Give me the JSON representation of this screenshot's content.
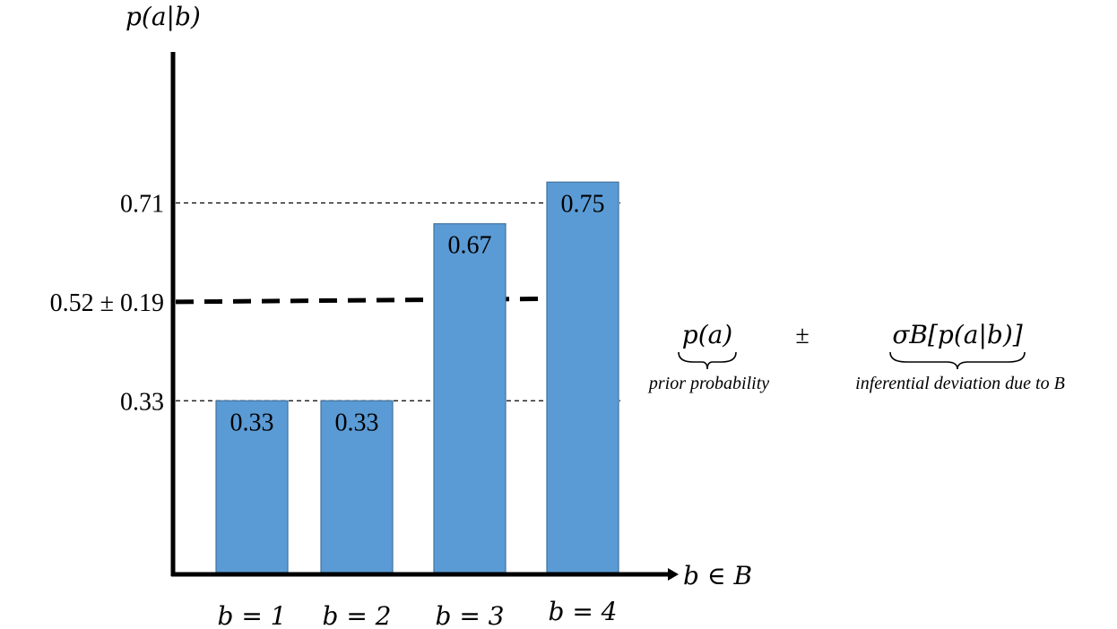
{
  "chart_data": {
    "type": "bar",
    "ylabel": "p(a|b)",
    "xlabel": "b ∈ B",
    "categories": [
      "b = 1",
      "b = 2",
      "b = 3",
      "b = 4"
    ],
    "values": [
      0.33,
      0.33,
      0.67,
      0.75
    ],
    "data_labels": [
      "0.33",
      "0.33",
      "0.67",
      "0.75"
    ],
    "ylim": [
      0,
      1.0
    ],
    "y_ticks": [
      {
        "value": 0.33,
        "label": "0.33",
        "line": "thin-dashed"
      },
      {
        "value": 0.52,
        "label": "0.52 ± 0.19",
        "line": "thick-dashed"
      },
      {
        "value": 0.71,
        "label": "0.71",
        "line": "thin-dashed"
      }
    ],
    "bar_color": "#5b9bd5",
    "bar_edge_color": "#41719c",
    "grid": false,
    "annotation": {
      "left_term": "p(a)",
      "left_caption": "prior probability",
      "operator": "±",
      "right_term": "σB[p(a|b)]",
      "right_caption": "inferential deviation due to B"
    }
  }
}
